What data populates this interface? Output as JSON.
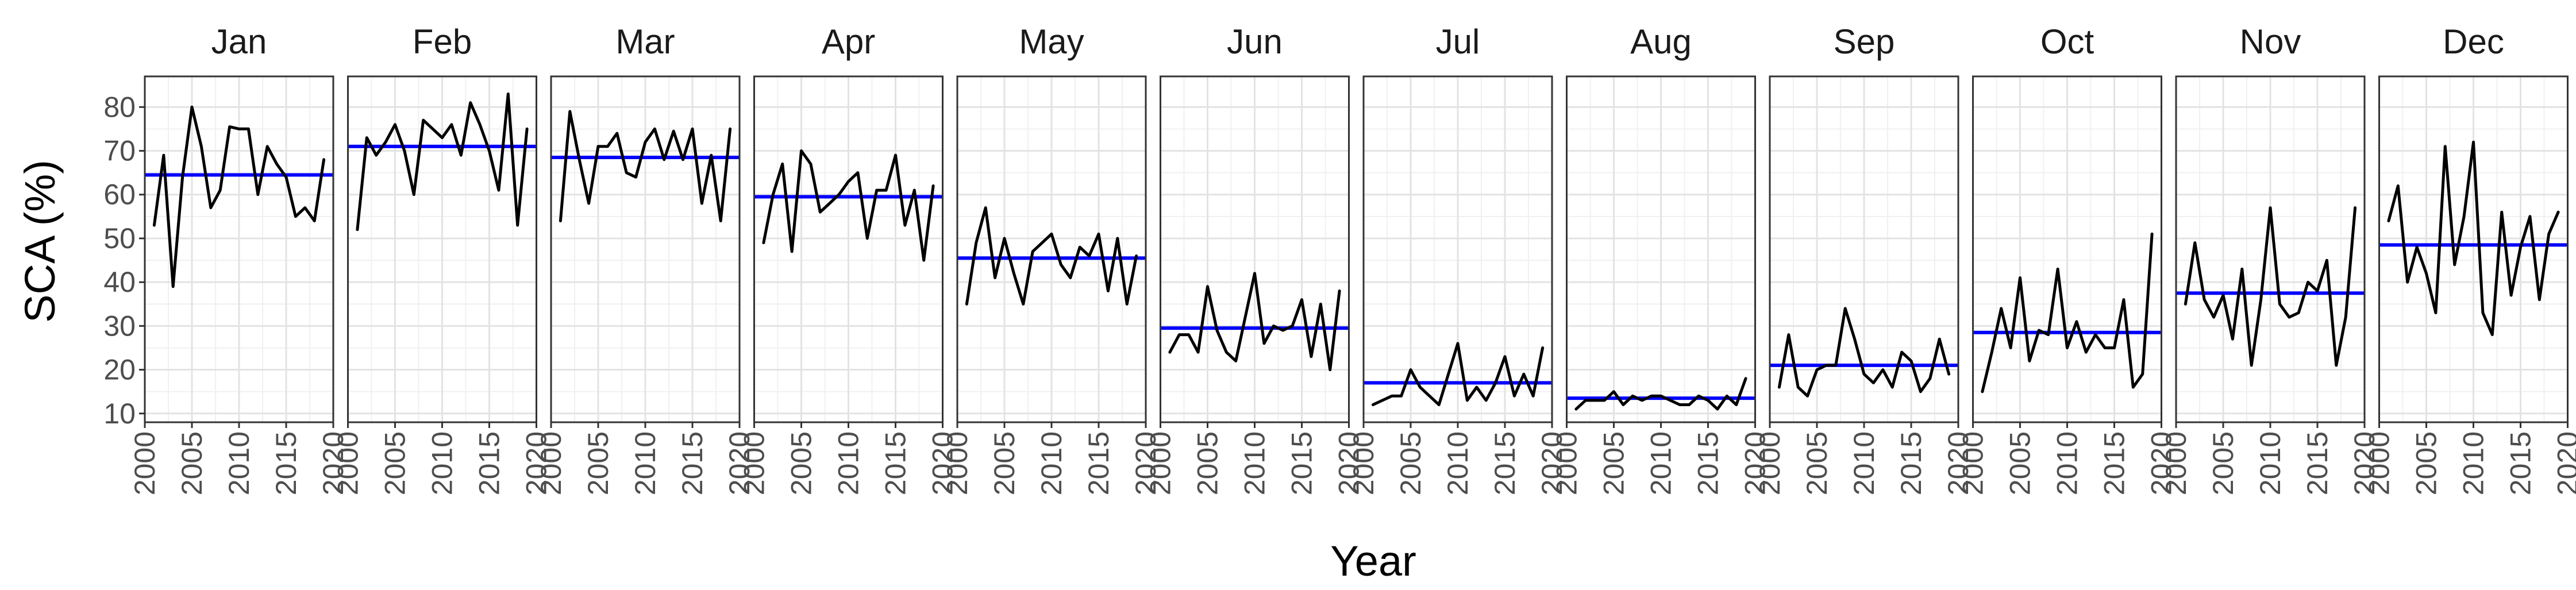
{
  "chart_data": {
    "type": "line",
    "xlabel": "Year",
    "ylabel": "SCA (%)",
    "xlim": [
      2000,
      2020
    ],
    "ylim": [
      8,
      87
    ],
    "x_ticks": [
      2000,
      2005,
      2010,
      2015,
      2020
    ],
    "y_ticks": [
      10,
      20,
      30,
      40,
      50,
      60,
      70,
      80
    ],
    "grid": true,
    "series_color": "#000000",
    "mean_line_color": "#0000ff",
    "years": [
      2001,
      2002,
      2003,
      2004,
      2005,
      2006,
      2007,
      2008,
      2009,
      2010,
      2011,
      2012,
      2013,
      2014,
      2015,
      2016,
      2017,
      2018,
      2019
    ],
    "panels": [
      {
        "month": "Jan",
        "mean": 64.5,
        "values": [
          53,
          69,
          39,
          64,
          80,
          71,
          57,
          61,
          75.5,
          75,
          75,
          60,
          71,
          67,
          64,
          55,
          57,
          54,
          68
        ]
      },
      {
        "month": "Feb",
        "mean": 71,
        "values": [
          52,
          73,
          69,
          72,
          76,
          70,
          60,
          77,
          75,
          73,
          76,
          69,
          81,
          76,
          70,
          61,
          83,
          53,
          75
        ]
      },
      {
        "month": "Mar",
        "mean": 68.5,
        "values": [
          54,
          79,
          68,
          58,
          71,
          71,
          74,
          65,
          64,
          72,
          75,
          68,
          74.5,
          68,
          75,
          58,
          69,
          54,
          75
        ]
      },
      {
        "month": "Apr",
        "mean": 59.5,
        "values": [
          49,
          60,
          67,
          47,
          70,
          67,
          56,
          58,
          60,
          63,
          65,
          50,
          61,
          61,
          69,
          53,
          61,
          45,
          62
        ]
      },
      {
        "month": "May",
        "mean": 45.5,
        "values": [
          35,
          49,
          57,
          41,
          50,
          42,
          35,
          47,
          49,
          51,
          44,
          41,
          48,
          46,
          51,
          38,
          50,
          35,
          46
        ]
      },
      {
        "month": "Jun",
        "mean": 29.5,
        "values": [
          24,
          28,
          28,
          24,
          39,
          29,
          24,
          22,
          32,
          42,
          26,
          30,
          29,
          30,
          36,
          23,
          35,
          20,
          38
        ]
      },
      {
        "month": "Jul",
        "mean": 17,
        "values": [
          12,
          13,
          14,
          14,
          20,
          16,
          14,
          12,
          19,
          26,
          13,
          16,
          13,
          17,
          23,
          14,
          19,
          14,
          25
        ]
      },
      {
        "month": "Aug",
        "mean": 13.5,
        "values": [
          11,
          13,
          13,
          13,
          15,
          12,
          14,
          13,
          14,
          14,
          13,
          12,
          12,
          14,
          13,
          11,
          14,
          12,
          18
        ]
      },
      {
        "month": "Sep",
        "mean": 21,
        "values": [
          16,
          28,
          16,
          14,
          20,
          21,
          21,
          34,
          27,
          19,
          17,
          20,
          16,
          24,
          22,
          15,
          18,
          27,
          19
        ]
      },
      {
        "month": "Oct",
        "mean": 28.5,
        "values": [
          15,
          24,
          34,
          25,
          41,
          22,
          29,
          28,
          43,
          25,
          31,
          24,
          28,
          25,
          25,
          36,
          16,
          19,
          51
        ]
      },
      {
        "month": "Nov",
        "mean": 37.5,
        "values": [
          35,
          49,
          36,
          32,
          37,
          27,
          43,
          21,
          36,
          57,
          35,
          32,
          33,
          40,
          38,
          45,
          21,
          32,
          57
        ]
      },
      {
        "month": "Dec",
        "mean": 48.5,
        "values": [
          54,
          62,
          40,
          48,
          42,
          33,
          71,
          44,
          55,
          72,
          33,
          28,
          56,
          37,
          48,
          55,
          36,
          51,
          56
        ]
      }
    ]
  }
}
